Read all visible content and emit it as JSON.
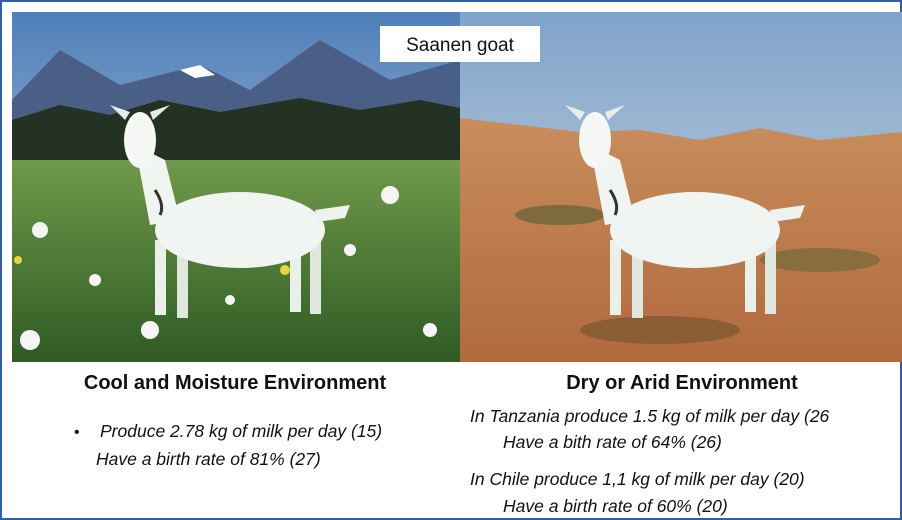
{
  "header": {
    "title": "Saanen goat"
  },
  "panels": [
    {
      "heading": "Cool and Moisture Environment",
      "lines": [
        "Produce 2.78 kg of milk per day (15)",
        "Have a birth rate of 81% (27)"
      ]
    },
    {
      "heading": "Dry or Arid Environment",
      "lines": [
        "In Tanzania produce 1.5 kg of milk per day (26",
        "Have a bith rate of 64% (26)",
        "In Chile produce 1,1 kg of milk per day (20)",
        "Have a birth rate of 60% (20)"
      ]
    }
  ]
}
